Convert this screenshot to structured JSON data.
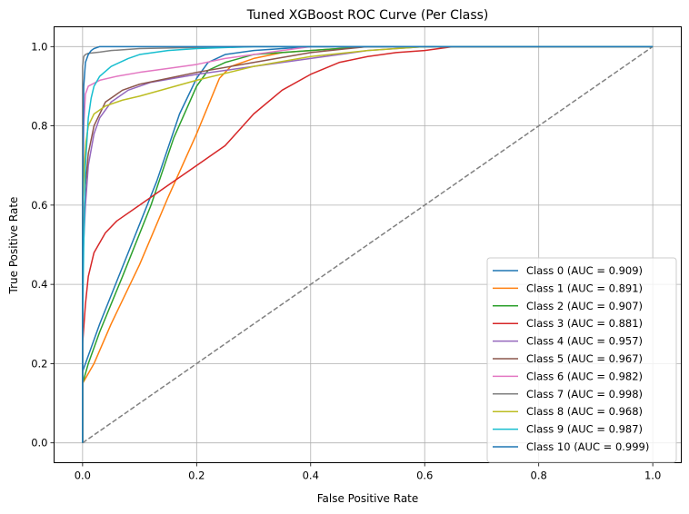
{
  "chart_data": {
    "type": "line",
    "title": "Tuned XGBoost ROC Curve (Per Class)",
    "xlabel": "False Positive Rate",
    "ylabel": "True Positive Rate",
    "xlim": [
      -0.05,
      1.05
    ],
    "ylim": [
      -0.05,
      1.05
    ],
    "xticks": [
      "0.0",
      "0.2",
      "0.4",
      "0.6",
      "0.8",
      "1.0"
    ],
    "yticks": [
      "0.0",
      "0.2",
      "0.4",
      "0.6",
      "0.8",
      "1.0"
    ],
    "grid": true,
    "legend_position": "bottom-right",
    "diagonal": {
      "x": [
        0,
        1
      ],
      "y": [
        0,
        1
      ],
      "color": "#808080",
      "style": "dashed"
    },
    "series": [
      {
        "name": "Class 0 (AUC = 0.909)",
        "color": "#1f77b4",
        "x": [
          0,
          0.0,
          0.01,
          0.03,
          0.08,
          0.13,
          0.17,
          0.2,
          0.22,
          0.25,
          0.3,
          0.4,
          0.5,
          0.6,
          1.0
        ],
        "y": [
          0,
          0.18,
          0.22,
          0.3,
          0.48,
          0.66,
          0.83,
          0.92,
          0.96,
          0.98,
          0.99,
          1.0,
          1.0,
          1.0,
          1.0
        ]
      },
      {
        "name": "Class 1 (AUC = 0.891)",
        "color": "#ff7f0e",
        "x": [
          0,
          0.0,
          0.02,
          0.05,
          0.1,
          0.15,
          0.2,
          0.24,
          0.26,
          0.3,
          0.35,
          0.4,
          0.5,
          1.0
        ],
        "y": [
          0,
          0.15,
          0.2,
          0.3,
          0.45,
          0.62,
          0.78,
          0.92,
          0.95,
          0.97,
          0.985,
          0.99,
          1.0,
          1.0
        ]
      },
      {
        "name": "Class 2 (AUC = 0.907)",
        "color": "#2ca02c",
        "x": [
          0,
          0.0,
          0.01,
          0.03,
          0.07,
          0.12,
          0.16,
          0.2,
          0.22,
          0.25,
          0.3,
          0.4,
          0.5,
          0.6,
          1.0
        ],
        "y": [
          0,
          0.15,
          0.2,
          0.28,
          0.42,
          0.6,
          0.77,
          0.9,
          0.94,
          0.96,
          0.98,
          0.99,
          1.0,
          1.0,
          1.0
        ]
      },
      {
        "name": "Class 3 (AUC = 0.881)",
        "color": "#d62728",
        "x": [
          0,
          0.0,
          0.005,
          0.01,
          0.02,
          0.04,
          0.06,
          0.1,
          0.15,
          0.2,
          0.25,
          0.3,
          0.35,
          0.4,
          0.45,
          0.5,
          0.55,
          0.6,
          0.65,
          0.7,
          1.0
        ],
        "y": [
          0,
          0.25,
          0.35,
          0.42,
          0.48,
          0.53,
          0.56,
          0.6,
          0.65,
          0.7,
          0.75,
          0.83,
          0.89,
          0.93,
          0.96,
          0.975,
          0.985,
          0.99,
          1.0,
          1.0,
          1.0
        ]
      },
      {
        "name": "Class 4 (AUC = 0.957)",
        "color": "#9467bd",
        "x": [
          0,
          0.0,
          0.005,
          0.01,
          0.02,
          0.03,
          0.05,
          0.08,
          0.12,
          0.2,
          0.3,
          0.4,
          0.5,
          0.6,
          1.0
        ],
        "y": [
          0,
          0.45,
          0.6,
          0.7,
          0.78,
          0.82,
          0.86,
          0.89,
          0.91,
          0.93,
          0.95,
          0.97,
          0.99,
          1.0,
          1.0
        ]
      },
      {
        "name": "Class 5 (AUC = 0.967)",
        "color": "#8c564b",
        "x": [
          0,
          0.0,
          0.005,
          0.01,
          0.02,
          0.04,
          0.07,
          0.1,
          0.15,
          0.2,
          0.3,
          0.4,
          0.5,
          1.0
        ],
        "y": [
          0,
          0.5,
          0.65,
          0.73,
          0.8,
          0.86,
          0.89,
          0.905,
          0.92,
          0.935,
          0.96,
          0.985,
          1.0,
          1.0
        ]
      },
      {
        "name": "Class 6 (AUC = 0.982)",
        "color": "#e377c2",
        "x": [
          0,
          0.0,
          0.002,
          0.005,
          0.01,
          0.03,
          0.06,
          0.1,
          0.15,
          0.2,
          0.25,
          0.3,
          0.35,
          0.4,
          1.0
        ],
        "y": [
          0,
          0.55,
          0.8,
          0.88,
          0.9,
          0.915,
          0.925,
          0.935,
          0.945,
          0.955,
          0.97,
          0.98,
          0.99,
          1.0,
          1.0
        ]
      },
      {
        "name": "Class 7 (AUC = 0.998)",
        "color": "#7f7f7f",
        "x": [
          0,
          0.0,
          0.002,
          0.005,
          0.01,
          0.03,
          0.05,
          0.1,
          0.2,
          0.3,
          1.0
        ],
        "y": [
          0,
          0.95,
          0.975,
          0.98,
          0.983,
          0.986,
          0.99,
          0.995,
          0.998,
          1.0,
          1.0
        ]
      },
      {
        "name": "Class 8 (AUC = 0.968)",
        "color": "#bcbd22",
        "x": [
          0,
          0.0,
          0.003,
          0.006,
          0.01,
          0.02,
          0.04,
          0.07,
          0.1,
          0.15,
          0.2,
          0.3,
          0.4,
          0.5,
          0.6,
          1.0
        ],
        "y": [
          0,
          0.6,
          0.7,
          0.76,
          0.8,
          0.83,
          0.85,
          0.865,
          0.875,
          0.895,
          0.915,
          0.95,
          0.975,
          0.99,
          1.0,
          1.0
        ]
      },
      {
        "name": "Class 9 (AUC = 0.987)",
        "color": "#17becf",
        "x": [
          0,
          0.0,
          0.002,
          0.005,
          0.01,
          0.015,
          0.02,
          0.03,
          0.05,
          0.08,
          0.1,
          0.15,
          0.2,
          0.3,
          1.0
        ],
        "y": [
          0,
          0.3,
          0.5,
          0.7,
          0.82,
          0.87,
          0.9,
          0.925,
          0.95,
          0.97,
          0.98,
          0.99,
          0.995,
          1.0,
          1.0
        ]
      },
      {
        "name": "Class 10 (AUC = 0.999)",
        "color": "#1f77b4",
        "x": [
          0,
          0.0,
          0.002,
          0.005,
          0.01,
          0.015,
          0.02,
          0.03,
          0.05,
          1.0
        ],
        "y": [
          0,
          0.6,
          0.9,
          0.96,
          0.98,
          0.99,
          0.995,
          1.0,
          1.0,
          1.0
        ]
      }
    ]
  }
}
